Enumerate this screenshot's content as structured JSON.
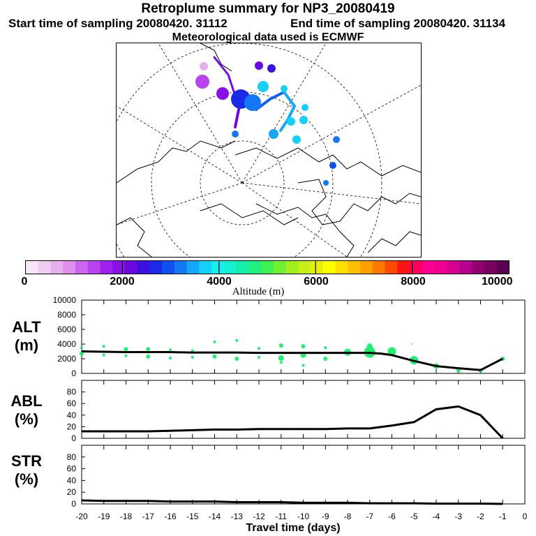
{
  "header": {
    "title": "Retroplume summary for NP3_20080419",
    "start": "Start time of sampling 20080420. 31112",
    "end": "End time of sampling 20080420. 31134",
    "met": "Meteorological data used is ECMWF"
  },
  "colorbar": {
    "ticks": [
      "0",
      "2000",
      "4000",
      "6000",
      "8000",
      "10000"
    ],
    "label": "Altitude (m)",
    "colors": [
      "#f6e6f6",
      "#f0ccf0",
      "#e6b0ee",
      "#dd90ec",
      "#cc66ee",
      "#b844f0",
      "#a020f0",
      "#8a10e8",
      "#6a08e0",
      "#3c10dd",
      "#1a2ae8",
      "#1050f0",
      "#1478f4",
      "#14a8f8",
      "#14d0fa",
      "#14f0f0",
      "#14f0d0",
      "#14f0aa",
      "#20f080",
      "#40f050",
      "#70f030",
      "#a0f020",
      "#c8f018",
      "#e8f010",
      "#ffff00",
      "#ffe000",
      "#ffc000",
      "#ffa000",
      "#ff7800",
      "#ff4800",
      "#ff1414",
      "#ff0060",
      "#ff0090",
      "#f00090",
      "#d80090",
      "#b80090",
      "#900070",
      "#7a0060",
      "#5a0050"
    ]
  },
  "panels": {
    "alt": {
      "name": "ALT",
      "unit": "(m)",
      "ylim": [
        0,
        10000
      ],
      "yticks": [
        "0",
        "2000",
        "4000",
        "6000",
        "8000",
        "10000"
      ]
    },
    "abl": {
      "name": "ABL",
      "unit": "(%)",
      "ylim": [
        0,
        100
      ],
      "yticks": [
        "0",
        "20",
        "40",
        "60",
        "80"
      ]
    },
    "str": {
      "name": "STR",
      "unit": "(%)",
      "ylim": [
        0,
        100
      ],
      "yticks": [
        "0",
        "20",
        "40",
        "60",
        "80"
      ]
    }
  },
  "xaxis": {
    "label": "Travel time (days)",
    "ticks": [
      "-20",
      "-19",
      "-18",
      "-17",
      "-16",
      "-15",
      "-14",
      "-13",
      "-12",
      "-11",
      "-10",
      "-9",
      "-8",
      "-7",
      "-6",
      "-5",
      "-4",
      "-3",
      "-2",
      "-1",
      "0"
    ]
  },
  "chart_data": {
    "type": "line",
    "title": "Retroplume summary for NP3_20080419",
    "xlabel": "Travel time (days)",
    "xlim": [
      -20,
      0
    ],
    "series": [
      {
        "name": "ALT (m)",
        "x": [
          -20,
          -19,
          -18,
          -17,
          -16,
          -15,
          -14,
          -13,
          -12,
          -11,
          -10,
          -9,
          -8,
          -7,
          -6.5,
          -6,
          -5,
          -4,
          -3,
          -2,
          -1
        ],
        "values": [
          3000,
          2950,
          2900,
          2900,
          2900,
          2850,
          2850,
          2850,
          2800,
          2800,
          2800,
          2800,
          2800,
          2800,
          2700,
          2500,
          1700,
          1000,
          700,
          450,
          2000
        ]
      },
      {
        "name": "ABL (%)",
        "x": [
          -20,
          -19,
          -18,
          -17,
          -16,
          -15,
          -14,
          -13,
          -12,
          -11,
          -10,
          -9,
          -8,
          -7,
          -6,
          -5,
          -4,
          -3,
          -2,
          -1
        ],
        "values": [
          12,
          12,
          12,
          12,
          13,
          14,
          15,
          15,
          16,
          16,
          16,
          16,
          17,
          17,
          22,
          28,
          50,
          55,
          40,
          0
        ]
      },
      {
        "name": "STR (%)",
        "x": [
          -20,
          -19,
          -18,
          -17,
          -16,
          -15,
          -14,
          -13,
          -12,
          -11,
          -10,
          -9,
          -8,
          -7,
          -6,
          -5,
          -4,
          -3,
          -2,
          -1
        ],
        "values": [
          6,
          5,
          5,
          5,
          4,
          4,
          4,
          3,
          3,
          3,
          2,
          2,
          2,
          1,
          1,
          1,
          0.5,
          0.5,
          0.5,
          0
        ]
      }
    ],
    "clusters": {
      "x": [
        -20,
        -20,
        -19,
        -19,
        -18,
        -18,
        -17,
        -17,
        -16,
        -16,
        -15,
        -15,
        -14,
        -14,
        -13,
        -13,
        -12,
        -12,
        -11,
        -11,
        -11,
        -10,
        -10,
        -10,
        -9,
        -9,
        -8,
        -7,
        -7,
        -6,
        -5.1,
        -5,
        -4,
        -3,
        -2,
        -1
      ],
      "y": [
        3500,
        2700,
        3700,
        2500,
        3300,
        2400,
        3300,
        2300,
        3200,
        2100,
        3100,
        2200,
        4300,
        2300,
        4500,
        2000,
        3400,
        2200,
        3800,
        2100,
        1500,
        3700,
        2500,
        1100,
        3500,
        2000,
        2900,
        2900,
        3700,
        3000,
        4000,
        1800,
        1000,
        400,
        400,
        2000
      ],
      "size": [
        2,
        3,
        2,
        2,
        3,
        2,
        3,
        3,
        2,
        2,
        2,
        2,
        2,
        3,
        2,
        3,
        2,
        2,
        3,
        4,
        2,
        3,
        4,
        2,
        2,
        3,
        5,
        8,
        4,
        6,
        1,
        6,
        4,
        3,
        3,
        3
      ]
    }
  }
}
